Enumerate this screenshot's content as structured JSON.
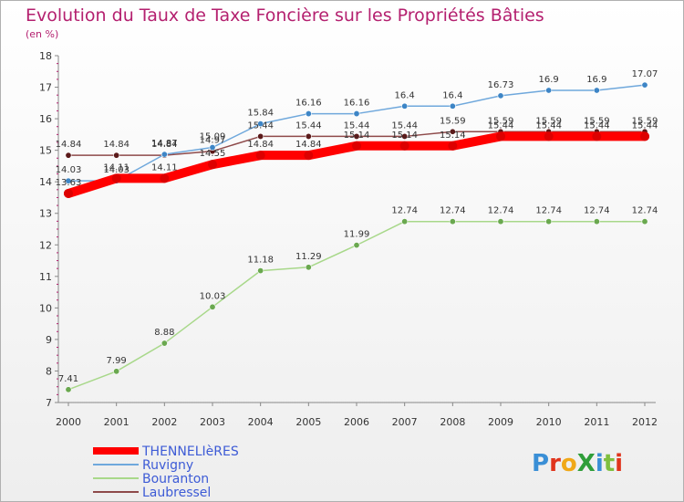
{
  "header": {
    "title": "Evolution du Taux de Taxe Foncière sur les Propriétés Bâties",
    "subtitle": "(en %)"
  },
  "logo": {
    "text": "ProXiti",
    "letter_colors": [
      "#3a8fd6",
      "#e0341c",
      "#f0a818",
      "#2f9e3a",
      "#3a8fd6",
      "#7fbf3f",
      "#e0341c"
    ]
  },
  "chart_data": {
    "type": "line",
    "title": "Evolution du Taux de Taxe Foncière sur les Propriétés Bâties",
    "subtitle": "(en %)",
    "x": [
      "2000",
      "2001",
      "2002",
      "2003",
      "2004",
      "2005",
      "2006",
      "2007",
      "2008",
      "2009",
      "2010",
      "2011",
      "2012"
    ],
    "ylim": [
      7,
      18
    ],
    "yticks": [
      "7",
      "8",
      "9",
      "10",
      "11",
      "12",
      "13",
      "14",
      "15",
      "16",
      "17",
      "18"
    ],
    "grid": false,
    "legend_position": "bottom-left",
    "series": [
      {
        "name": "THENNELIèRES",
        "color": "#ff0000",
        "marker_color": "#dd0000",
        "thick": true,
        "values": [
          13.63,
          14.11,
          14.11,
          14.55,
          14.84,
          14.84,
          15.14,
          15.14,
          15.14,
          15.44,
          15.44,
          15.44,
          15.44
        ],
        "labels": [
          "13.63",
          "14.11",
          "14.11",
          "14.55",
          "14.84",
          "14.84",
          "15.14",
          "15.14",
          "15.14",
          "15.44",
          "15.44",
          "15.44",
          "15.44"
        ]
      },
      {
        "name": "Ruvigny",
        "color": "#6fa8dc",
        "marker_color": "#3d85c6",
        "thick": false,
        "values": [
          14.03,
          14.03,
          14.87,
          15.09,
          15.84,
          16.16,
          16.16,
          16.4,
          16.4,
          16.73,
          16.9,
          16.9,
          17.07
        ],
        "labels": [
          "14.03",
          "14.03",
          "14.87",
          "15.09",
          "15.84",
          "16.16",
          "16.16",
          "16.4",
          "16.4",
          "16.73",
          "16.9",
          "16.9",
          "17.07"
        ]
      },
      {
        "name": "Bouranton",
        "color": "#a8d88a",
        "marker_color": "#6aa84f",
        "thick": false,
        "values": [
          7.41,
          7.99,
          8.88,
          10.03,
          11.18,
          11.29,
          11.99,
          12.74,
          12.74,
          12.74,
          12.74,
          12.74,
          12.74
        ],
        "labels": [
          "7.41",
          "7.99",
          "8.88",
          "10.03",
          "11.18",
          "11.29",
          "11.99",
          "12.74",
          "12.74",
          "12.74",
          "12.74",
          "12.74",
          "12.74"
        ]
      },
      {
        "name": "Laubressel",
        "color": "#8e4a4a",
        "marker_color": "#5b1a1a",
        "thick": false,
        "values": [
          14.84,
          14.84,
          14.84,
          14.97,
          15.44,
          15.44,
          15.44,
          15.44,
          15.59,
          15.59,
          15.59,
          15.59,
          15.59
        ],
        "labels": [
          "14.84",
          "14.84",
          "14.84",
          "14.97",
          "15.44",
          "15.44",
          "15.44",
          "15.44",
          "15.59",
          "15.59",
          "15.59",
          "15.59",
          "15.59"
        ]
      }
    ]
  }
}
